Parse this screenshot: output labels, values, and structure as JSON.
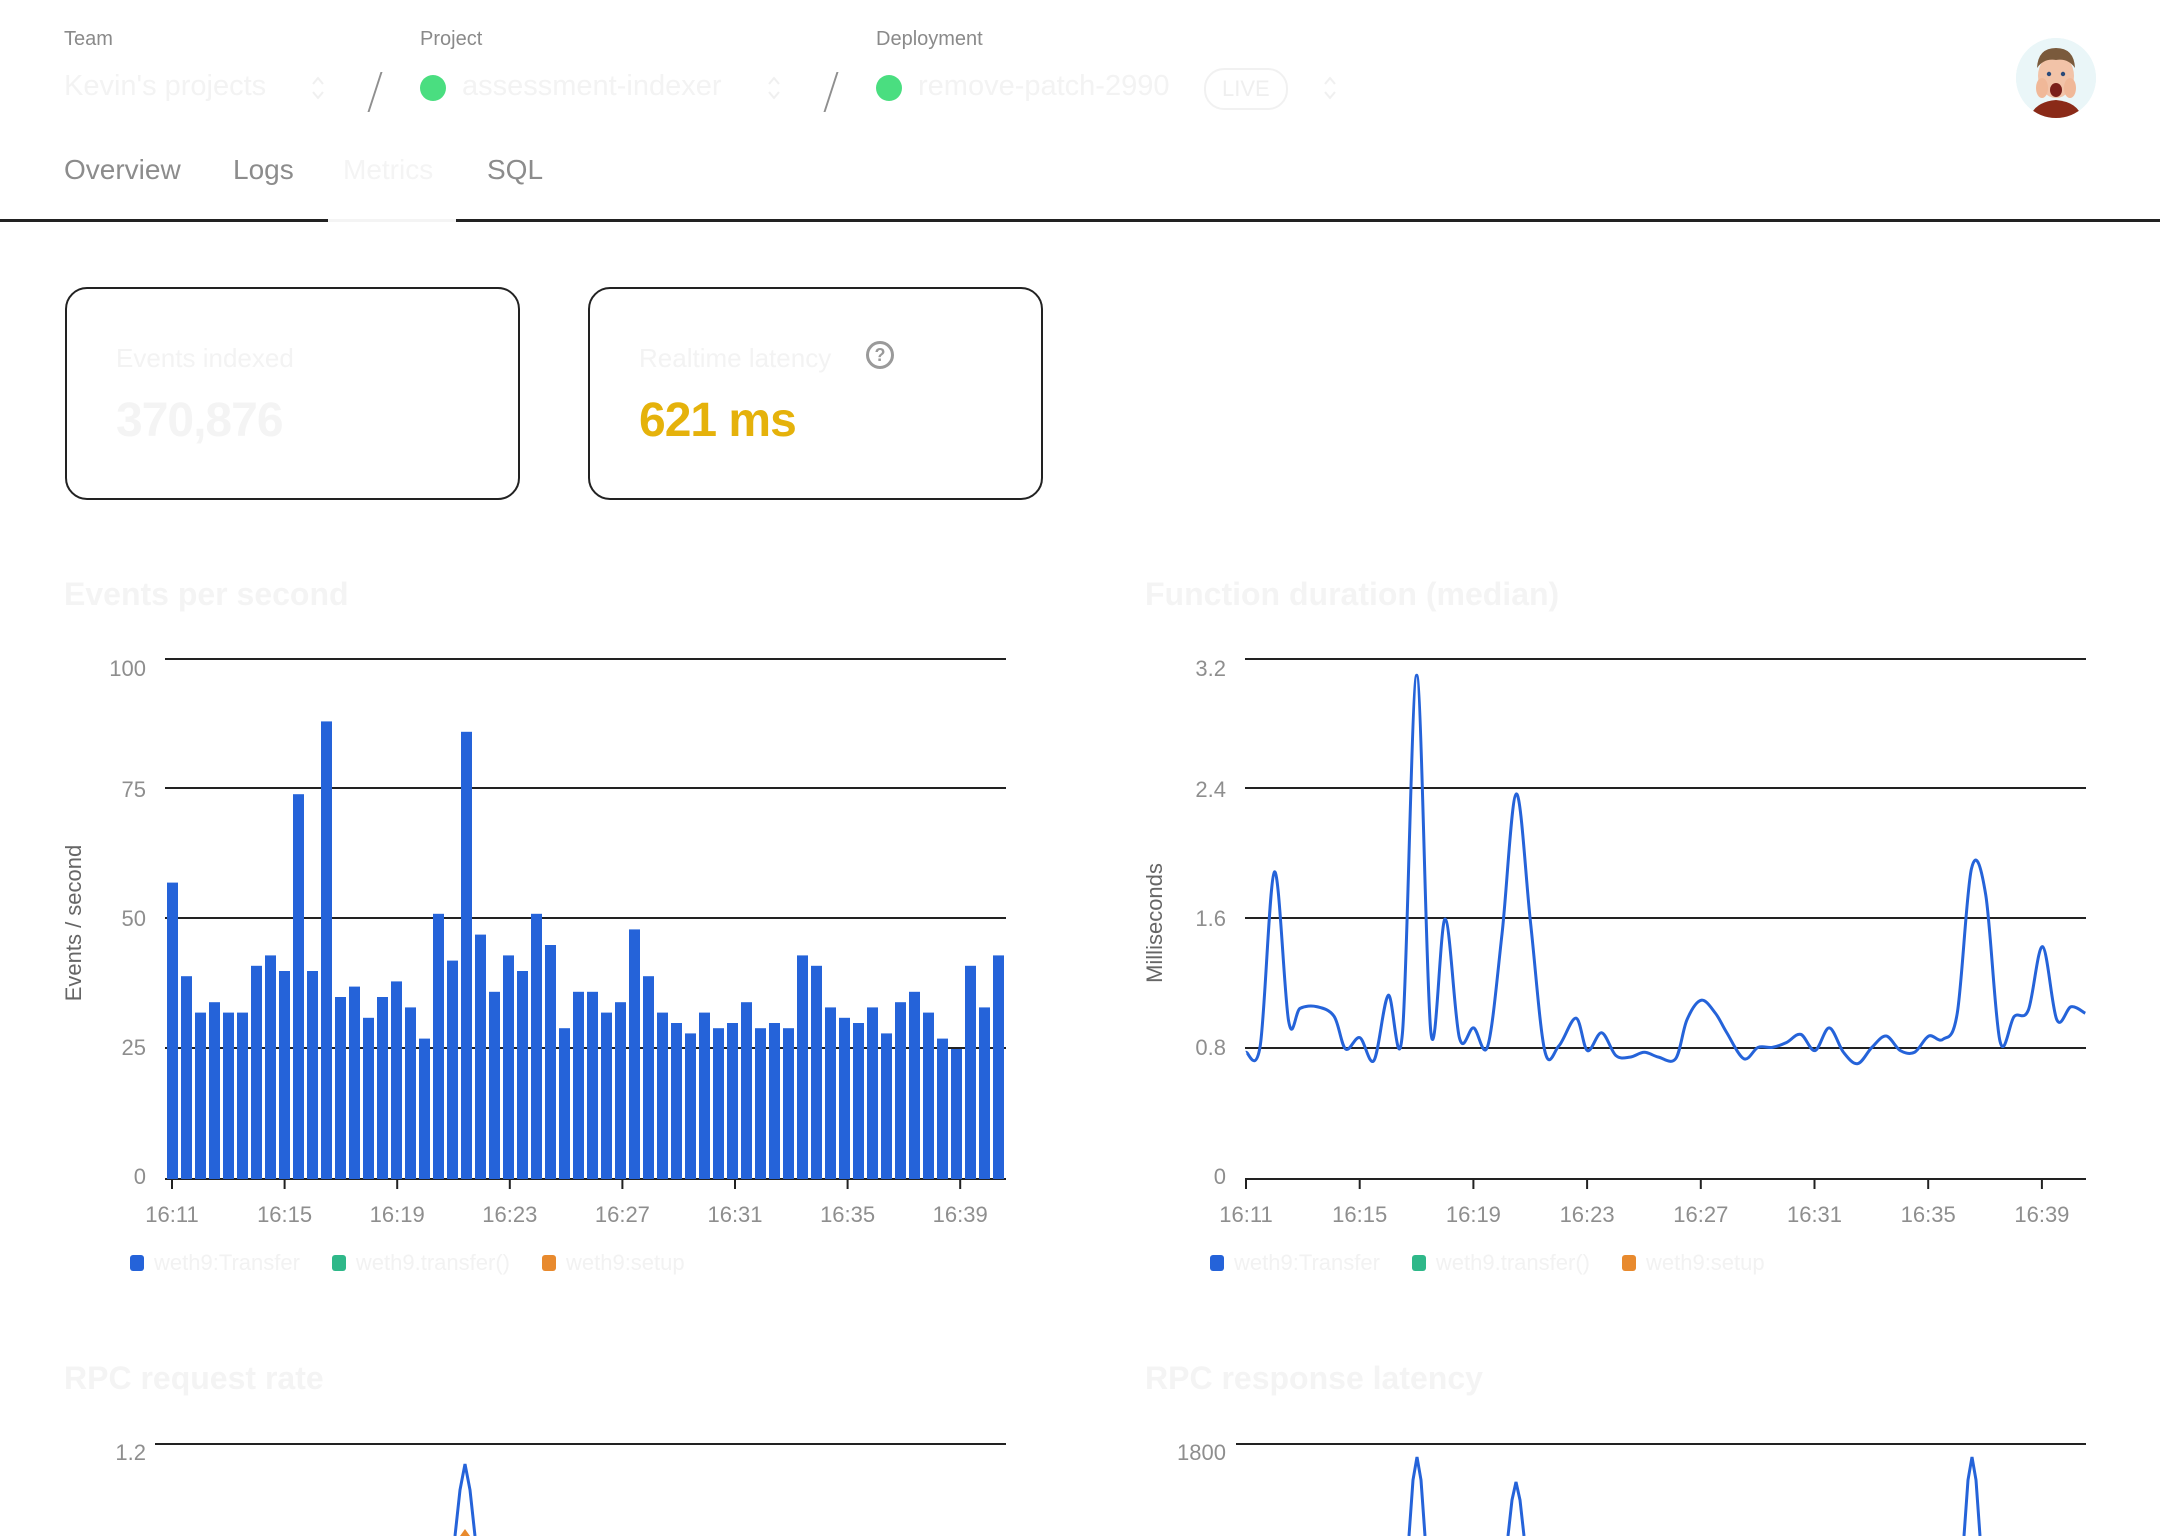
{
  "header": {
    "team": {
      "label": "Team",
      "value": "Kevin's projects"
    },
    "project": {
      "label": "Project",
      "value": "assessment-indexer",
      "status_color": "#4ade80"
    },
    "deployment": {
      "label": "Deployment",
      "value": "remove-patch-2990",
      "badge": "LIVE",
      "status_color": "#4ade80"
    },
    "separator": "/",
    "avatar_alt": "User avatar"
  },
  "tabs": [
    {
      "label": "Overview",
      "active": false
    },
    {
      "label": "Logs",
      "active": false
    },
    {
      "label": "Metrics",
      "active": true
    },
    {
      "label": "SQL",
      "active": false
    }
  ],
  "stats": {
    "events_indexed": {
      "label": "Events indexed",
      "value": "370,876"
    },
    "realtime_latency": {
      "label": "Realtime latency",
      "value": "621 ms",
      "help_icon": "?",
      "color": "#e5b20b"
    }
  },
  "legend": [
    {
      "label": "weth9:Transfer",
      "color": "#2563d9"
    },
    {
      "label": "weth9.transfer()",
      "color": "#2fb889"
    },
    {
      "label": "weth9:setup",
      "color": "#e88a2e"
    }
  ],
  "x_ticks": [
    "16:11",
    "16:15",
    "16:19",
    "16:23",
    "16:27",
    "16:31",
    "16:35",
    "16:39"
  ],
  "chart_data": [
    {
      "type": "bar",
      "title": "Events per second",
      "xlabel": "",
      "ylabel": "Events / second",
      "ylim": [
        0,
        100
      ],
      "y_ticks": [
        "100",
        "75",
        "50",
        "25",
        "0"
      ],
      "grid": true,
      "legend_position": "bottom",
      "x_range": [
        "16:11",
        "16:40"
      ],
      "series": [
        {
          "name": "weth9:Transfer",
          "color": "#2563d9",
          "values": [
            57,
            39,
            32,
            34,
            32,
            32,
            41,
            43,
            40,
            74,
            40,
            88,
            35,
            37,
            31,
            35,
            38,
            33,
            27,
            51,
            42,
            86,
            47,
            36,
            43,
            40,
            51,
            45,
            29,
            36,
            36,
            32,
            34,
            48,
            39,
            32,
            30,
            28,
            32,
            29,
            30,
            34,
            29,
            30,
            29,
            43,
            41,
            33,
            31,
            30,
            33,
            28,
            34,
            36,
            32,
            27,
            25,
            41,
            33,
            43
          ]
        },
        {
          "name": "weth9.transfer()",
          "color": "#2fb889",
          "values": []
        },
        {
          "name": "weth9:setup",
          "color": "#e88a2e",
          "values": []
        }
      ]
    },
    {
      "type": "line",
      "title": "Function duration (median)",
      "xlabel": "",
      "ylabel": "Milliseconds",
      "ylim": [
        0,
        3.2
      ],
      "y_ticks": [
        "3.2",
        "2.4",
        "1.6",
        "0.8",
        "0"
      ],
      "grid": true,
      "legend_position": "bottom",
      "series": [
        {
          "name": "weth9:Transfer",
          "color": "#2563d9",
          "x_minutes": [
            11.0,
            11.5,
            12.0,
            12.5,
            12.9,
            13.5,
            14.1,
            14.5,
            15.0,
            15.5,
            16.0,
            16.5,
            17.0,
            17.5,
            18.0,
            18.5,
            19.0,
            19.5,
            20.0,
            20.5,
            21.0,
            21.5,
            22.0,
            22.6,
            23.0,
            23.5,
            24.0,
            24.5,
            25.0,
            25.5,
            26.1,
            26.5,
            27.0,
            27.5,
            27.9,
            28.5,
            29.0,
            29.5,
            30.0,
            30.5,
            31.0,
            31.5,
            32.0,
            32.5,
            33.0,
            33.5,
            34.0,
            34.5,
            35.0,
            35.5,
            36.0,
            36.5,
            37.0,
            37.5,
            38.0,
            38.5,
            39.0,
            39.5,
            40.0,
            40.5
          ],
          "values": [
            0.78,
            0.82,
            1.89,
            0.97,
            1.05,
            1.06,
            1.0,
            0.8,
            0.87,
            0.73,
            1.13,
            0.9,
            3.1,
            0.9,
            1.6,
            0.87,
            0.93,
            0.82,
            1.51,
            2.37,
            1.58,
            0.79,
            0.82,
            0.99,
            0.79,
            0.9,
            0.76,
            0.75,
            0.78,
            0.75,
            0.74,
            0.98,
            1.1,
            1.02,
            0.9,
            0.74,
            0.81,
            0.81,
            0.84,
            0.89,
            0.79,
            0.93,
            0.78,
            0.71,
            0.81,
            0.88,
            0.79,
            0.78,
            0.88,
            0.86,
            1.02,
            1.91,
            1.75,
            0.85,
            1.0,
            1.04,
            1.43,
            0.98,
            1.06,
            1.02
          ]
        }
      ]
    },
    {
      "type": "line",
      "title": "RPC request rate",
      "y_ticks_visible": [
        "1.2"
      ],
      "ylim_top": 1.2,
      "series": [
        {
          "name": "weth9:Transfer",
          "color": "#2563d9",
          "visible_peak_time": "16:21",
          "visible_peak_value": 1.1
        },
        {
          "name": "weth9:setup",
          "color": "#e88a2e",
          "visible_peak_time": "16:21"
        }
      ]
    },
    {
      "type": "line",
      "title": "RPC response latency",
      "y_ticks_visible": [
        "1800"
      ],
      "ylim_top": 1800,
      "series": [
        {
          "name": "weth9:Transfer",
          "color": "#2563d9",
          "visible_peaks": [
            {
              "time": "16:17",
              "value": 1750
            },
            {
              "time": "16:21",
              "value": 1580
            },
            {
              "time": "16:36",
              "value": 1750
            }
          ]
        }
      ]
    }
  ]
}
